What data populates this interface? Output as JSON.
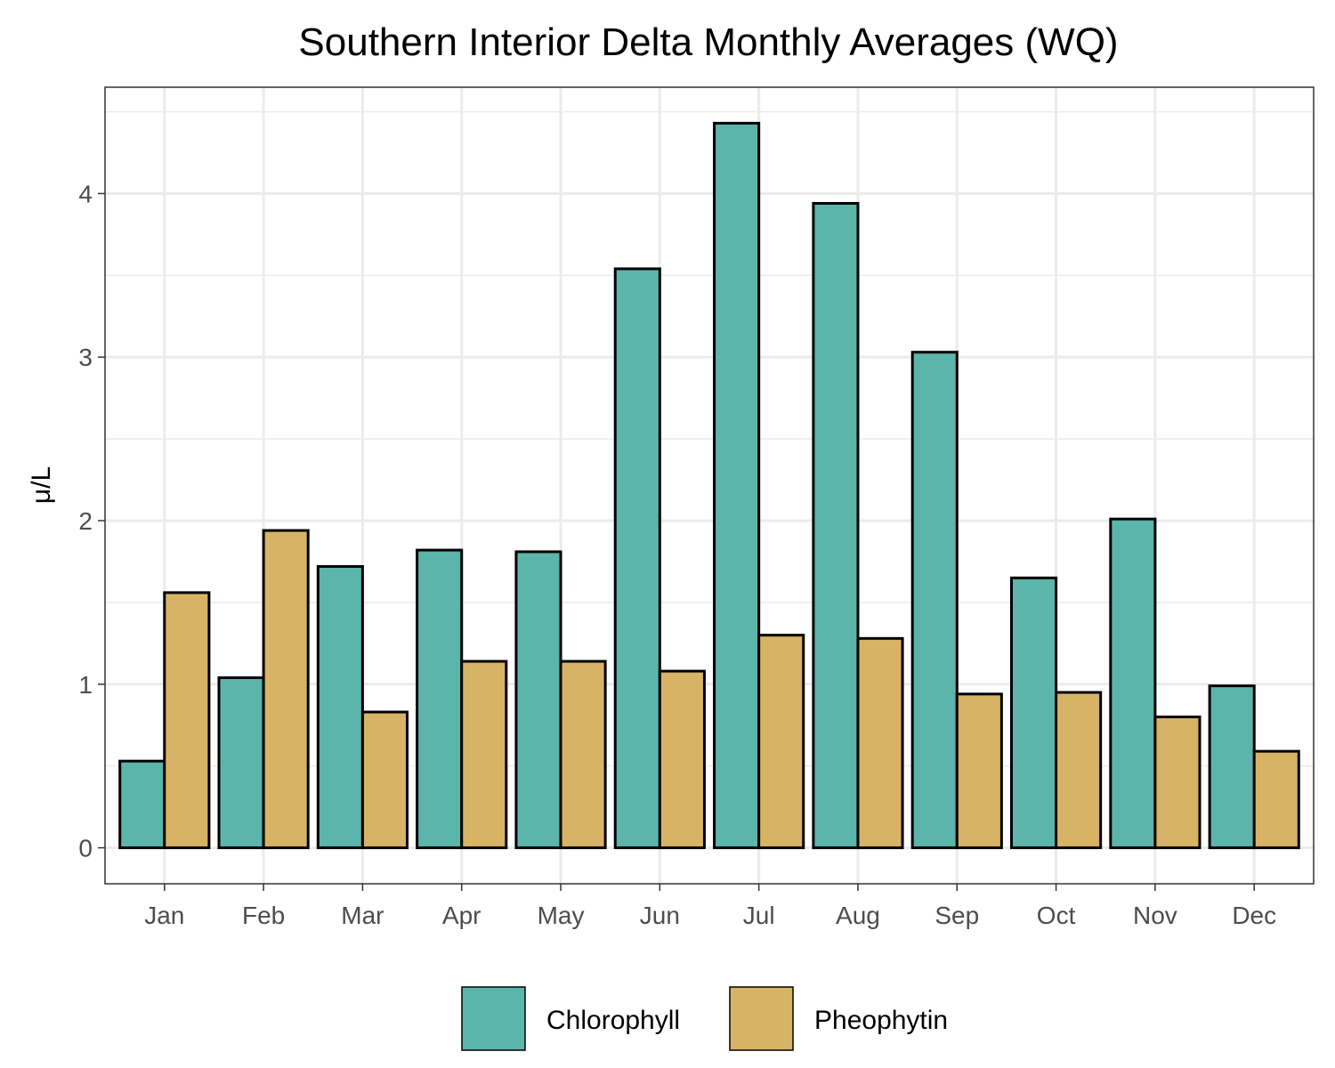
{
  "chart_data": {
    "type": "bar",
    "title": "Southern Interior Delta Monthly Averages (WQ)",
    "xlabel": "",
    "ylabel": "μ/L",
    "categories": [
      "Jan",
      "Feb",
      "Mar",
      "Apr",
      "May",
      "Jun",
      "Jul",
      "Aug",
      "Sep",
      "Oct",
      "Nov",
      "Dec"
    ],
    "series": [
      {
        "name": "Chlorophyll",
        "color": "#5BB5AA",
        "values": [
          0.53,
          1.04,
          1.72,
          1.82,
          1.81,
          3.54,
          4.43,
          3.94,
          3.03,
          1.65,
          2.01,
          0.99
        ]
      },
      {
        "name": "Pheophytin",
        "color": "#D8B365",
        "values": [
          1.56,
          1.94,
          0.83,
          1.14,
          1.14,
          1.08,
          1.3,
          1.28,
          0.94,
          0.95,
          0.8,
          0.59
        ]
      }
    ],
    "ylim": [
      -0.22,
      4.65
    ],
    "yticks": [
      0,
      1,
      2,
      3,
      4
    ],
    "grid": true,
    "legend_position": "bottom"
  }
}
